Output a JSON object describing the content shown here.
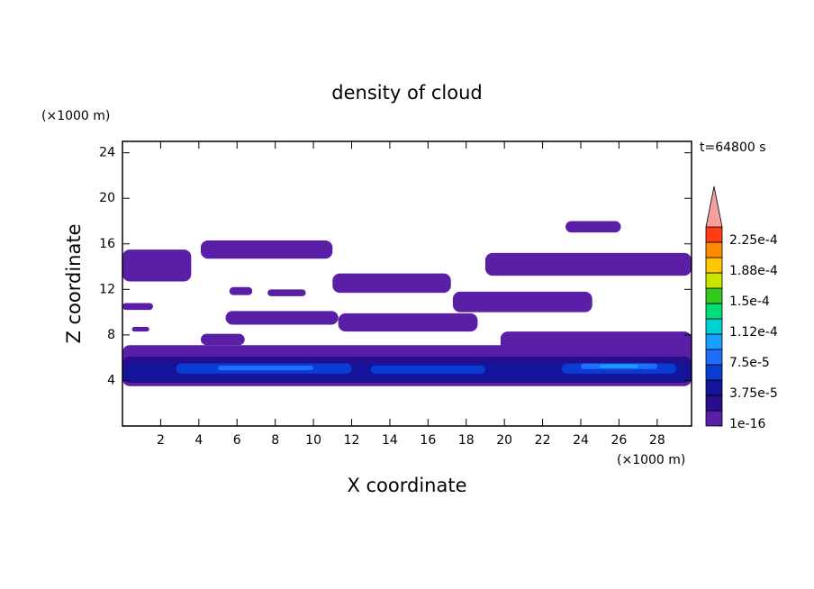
{
  "chart_data": {
    "type": "contour",
    "title": "density of cloud",
    "x_label": "X coordinate",
    "y_label": "Z coordinate",
    "x_unit": "(×1000 m)",
    "y_unit": "(×1000 m)",
    "time_label": "t=64800 s",
    "xlim": [
      0,
      29.8
    ],
    "ylim": [
      0,
      25
    ],
    "xticks": [
      2,
      4,
      6,
      8,
      10,
      12,
      14,
      16,
      18,
      20,
      22,
      24,
      26,
      28
    ],
    "yticks": [
      4,
      8,
      12,
      16,
      20,
      24
    ],
    "colorbar": {
      "levels": [
        1e-16,
        1.875e-05,
        3.75e-05,
        5.625e-05,
        7.5e-05,
        9.375e-05,
        0.0001125,
        0.00013125,
        0.00015,
        0.00016875,
        0.0001875,
        0.00020625,
        0.000225
      ],
      "colors": [
        "#5a1fa6",
        "#2a0d8c",
        "#14149a",
        "#0a3cd2",
        "#1e6efa",
        "#19a0ff",
        "#00d2d2",
        "#00dc78",
        "#32c81e",
        "#c8e600",
        "#ffc800",
        "#ff8c00",
        "#ff3c14"
      ],
      "extend_color": "#f4a0a0",
      "ticks": [
        {
          "value": 1e-16,
          "label": "1e-16"
        },
        {
          "value": 3.75e-05,
          "label": "3.75e-5"
        },
        {
          "value": 7.5e-05,
          "label": "7.5e-5"
        },
        {
          "value": 0.0001125,
          "label": "1.12e-4"
        },
        {
          "value": 0.00015,
          "label": "1.5e-4"
        },
        {
          "value": 0.0001875,
          "label": "1.88e-4"
        },
        {
          "value": 0.000225,
          "label": "2.25e-4"
        }
      ]
    },
    "regions": [
      {
        "x": [
          0,
          3.6
        ],
        "z": [
          12.7,
          15.5
        ],
        "level": 1e-16
      },
      {
        "x": [
          4.1,
          11
        ],
        "z": [
          14.7,
          16.3
        ],
        "level": 1e-16
      },
      {
        "x": [
          11,
          17.2
        ],
        "z": [
          11.7,
          13.4
        ],
        "level": 1e-16
      },
      {
        "x": [
          19,
          29.8
        ],
        "z": [
          13.2,
          15.2
        ],
        "level": 1e-16
      },
      {
        "x": [
          23.2,
          26.1
        ],
        "z": [
          17,
          18
        ],
        "level": 1e-16
      },
      {
        "x": [
          5.6,
          6.8
        ],
        "z": [
          11.5,
          12.2
        ],
        "level": 1e-16
      },
      {
        "x": [
          7.6,
          9.6
        ],
        "z": [
          11.4,
          12
        ],
        "level": 1e-16
      },
      {
        "x": [
          17.3,
          24.6
        ],
        "z": [
          10,
          11.8
        ],
        "level": 1e-16
      },
      {
        "x": [
          5.4,
          11.3
        ],
        "z": [
          8.9,
          10.1
        ],
        "level": 1e-16
      },
      {
        "x": [
          11.3,
          18.6
        ],
        "z": [
          8.3,
          9.9
        ],
        "level": 1e-16
      },
      {
        "x": [
          19.8,
          29.8
        ],
        "z": [
          6.1,
          8.3
        ],
        "level": 1e-16
      },
      {
        "x": [
          4.1,
          6.4
        ],
        "z": [
          7.1,
          8.1
        ],
        "level": 1e-16
      },
      {
        "x": [
          0,
          1.6
        ],
        "z": [
          10.2,
          10.8
        ],
        "level": 1e-16
      },
      {
        "x": [
          0.5,
          1.4
        ],
        "z": [
          8.3,
          8.7
        ],
        "level": 1e-16
      },
      {
        "x": [
          0,
          29.8
        ],
        "z": [
          3.5,
          7.1
        ],
        "level": 1e-16
      },
      {
        "x": [
          0,
          29.8
        ],
        "z": [
          3.8,
          6.1
        ],
        "level": 1.875e-05
      },
      {
        "x": [
          0,
          29.8
        ],
        "z": [
          4,
          5.6
        ],
        "level": 3.75e-05
      },
      {
        "x": [
          2.8,
          12
        ],
        "z": [
          4.6,
          5.5
        ],
        "level": 5.625e-05
      },
      {
        "x": [
          13,
          19
        ],
        "z": [
          4.6,
          5.3
        ],
        "level": 5.625e-05
      },
      {
        "x": [
          23,
          29
        ],
        "z": [
          4.6,
          5.5
        ],
        "level": 5.625e-05
      },
      {
        "x": [
          5,
          10
        ],
        "z": [
          4.9,
          5.3
        ],
        "level": 7.5e-05
      },
      {
        "x": [
          24,
          28
        ],
        "z": [
          5,
          5.5
        ],
        "level": 7.5e-05
      },
      {
        "x": [
          25,
          27
        ],
        "z": [
          5.1,
          5.4
        ],
        "level": 9.375e-05
      }
    ]
  }
}
